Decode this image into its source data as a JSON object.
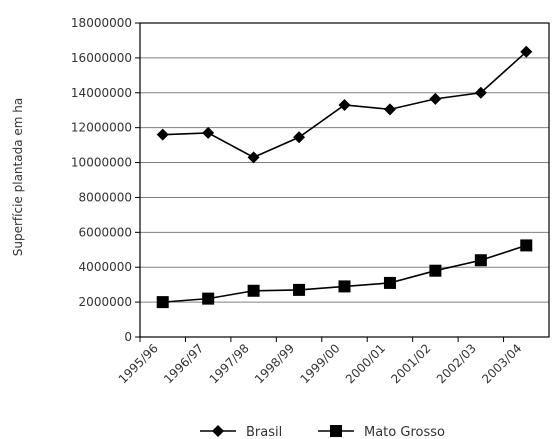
{
  "chart_data": {
    "type": "line",
    "title": "",
    "xlabel": "",
    "ylabel": "Superfície plantada em ha",
    "categories": [
      "1995/96",
      "1996/97",
      "1997/98",
      "1998/99",
      "1999/00",
      "2000/01",
      "2001/02",
      "2002/03",
      "2003/04"
    ],
    "ylim": [
      0,
      18000000
    ],
    "yticks": [
      "0",
      "2000000",
      "4000000",
      "6000000",
      "8000000",
      "10000000",
      "12000000",
      "14000000",
      "16000000",
      "18000000"
    ],
    "grid": true,
    "legend": "bottom",
    "series": [
      {
        "name": "Brasil",
        "marker": "diamond",
        "values": [
          11600000,
          11700000,
          10300000,
          11450000,
          13300000,
          13050000,
          13650000,
          14000000,
          16350000
        ]
      },
      {
        "name": "Mato Grosso",
        "marker": "square",
        "values": [
          2000000,
          2200000,
          2650000,
          2700000,
          2900000,
          3100000,
          3800000,
          4400000,
          5250000
        ]
      }
    ],
    "colors": {
      "line": "#000000",
      "grid": "#808080",
      "axis": "#000000"
    }
  }
}
